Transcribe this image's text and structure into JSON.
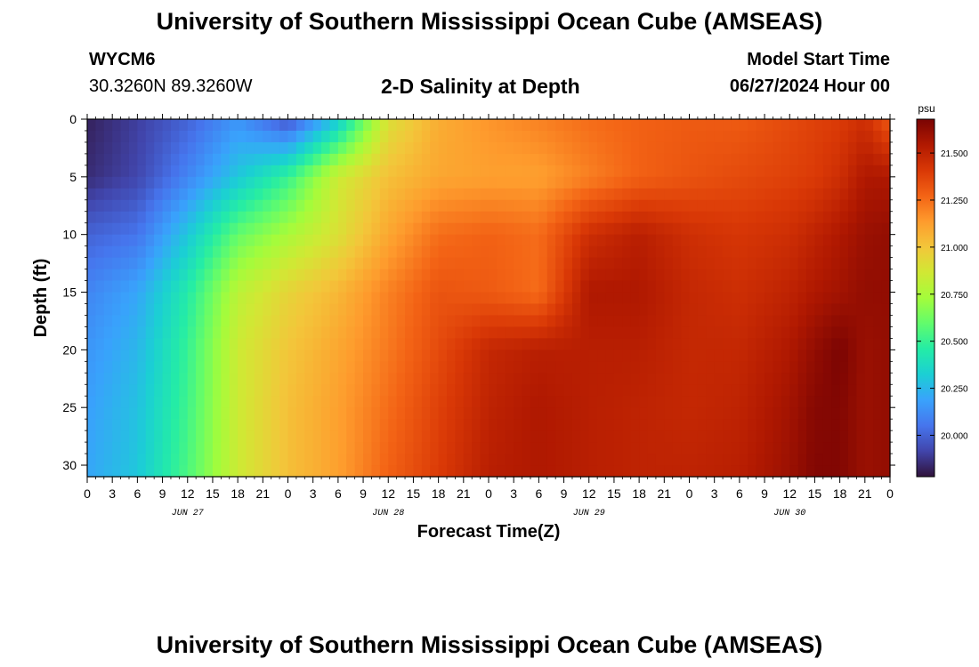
{
  "header": {
    "title": "University of Southern Mississippi Ocean Cube (AMSEAS)",
    "station": "WYCM6",
    "coords": "30.3260N  89.3260W",
    "subtitle": "2-D Salinity at Depth",
    "model_label": "Model Start Time",
    "model_time": "06/27/2024 Hour 00"
  },
  "footer": {
    "title": "University of Southern Mississippi Ocean Cube (AMSEAS)"
  },
  "chart_data": {
    "type": "heatmap",
    "title": "2-D Salinity at Depth",
    "xlabel": "Forecast Time(Z)",
    "ylabel": "Depth (ft)",
    "x_unit": "hours from 06/27/2024 00Z",
    "xlim": [
      0,
      96
    ],
    "ylim": [
      0,
      31
    ],
    "y_inverted": true,
    "x_ticks": [
      0,
      3,
      6,
      9,
      12,
      15,
      18,
      21,
      24,
      27,
      30,
      33,
      36,
      39,
      42,
      45,
      48,
      51,
      54,
      57,
      60,
      63,
      66,
      69,
      72,
      75,
      78,
      81,
      84,
      87,
      90,
      93,
      96
    ],
    "x_tick_labels": [
      "0",
      "3",
      "6",
      "9",
      "12",
      "15",
      "18",
      "21",
      "0",
      "3",
      "6",
      "9",
      "12",
      "15",
      "18",
      "21",
      "0",
      "3",
      "6",
      "9",
      "12",
      "15",
      "18",
      "21",
      "0",
      "3",
      "6",
      "9",
      "12",
      "15",
      "18",
      "21",
      "0"
    ],
    "day_labels": [
      {
        "hour": 12,
        "text": "JUN 27"
      },
      {
        "hour": 36,
        "text": "JUN 28"
      },
      {
        "hour": 60,
        "text": "JUN 29"
      },
      {
        "hour": 84,
        "text": "JUN 30"
      }
    ],
    "y_ticks": [
      0,
      5,
      10,
      15,
      20,
      25,
      30
    ],
    "y_tick_labels": [
      "0",
      "5",
      "10",
      "15",
      "20",
      "25",
      "30"
    ],
    "colorbar": {
      "unit": "psu",
      "min": 19.78,
      "max": 21.68,
      "ticks": [
        20.0,
        20.25,
        20.5,
        20.75,
        21.0,
        21.25,
        21.5
      ],
      "tick_labels": [
        "20.000",
        "20.250",
        "20.500",
        "20.750",
        "21.000",
        "21.250",
        "21.500"
      ],
      "colormap": [
        "#30123b",
        "#4145ab",
        "#4675ed",
        "#39a2fc",
        "#1bcfd4",
        "#24eca6",
        "#61fc6c",
        "#a4fc3b",
        "#d1e834",
        "#f3c63a",
        "#fe9b2d",
        "#f36315",
        "#d93806",
        "#b11901",
        "#7a0403"
      ]
    },
    "depths": [
      0,
      5,
      10,
      15,
      20,
      25,
      31
    ],
    "times": [
      0,
      6,
      12,
      18,
      24,
      30,
      36,
      42,
      48,
      54,
      60,
      66,
      72,
      78,
      84,
      87,
      90,
      93,
      96
    ],
    "values": [
      [
        19.82,
        19.9,
        20.0,
        20.15,
        19.95,
        20.3,
        20.9,
        21.08,
        21.15,
        21.2,
        21.25,
        21.28,
        21.3,
        21.3,
        21.35,
        21.38,
        21.4,
        21.45,
        21.3
      ],
      [
        19.85,
        19.92,
        20.1,
        20.3,
        20.5,
        20.85,
        21.02,
        21.1,
        21.12,
        21.12,
        21.2,
        21.28,
        21.32,
        21.35,
        21.38,
        21.4,
        21.45,
        21.55,
        21.55
      ],
      [
        20.0,
        20.05,
        20.3,
        20.6,
        20.75,
        20.9,
        21.1,
        21.25,
        21.28,
        21.25,
        21.45,
        21.52,
        21.45,
        21.42,
        21.45,
        21.5,
        21.55,
        21.6,
        21.62
      ],
      [
        20.1,
        20.2,
        20.45,
        20.8,
        20.95,
        21.05,
        21.2,
        21.32,
        21.3,
        21.25,
        21.55,
        21.55,
        21.48,
        21.45,
        21.5,
        21.55,
        21.58,
        21.62,
        21.62
      ],
      [
        20.15,
        20.25,
        20.5,
        20.85,
        21.0,
        21.1,
        21.22,
        21.35,
        21.48,
        21.52,
        21.52,
        21.52,
        21.48,
        21.48,
        21.55,
        21.62,
        21.68,
        21.6,
        21.62
      ],
      [
        20.18,
        20.28,
        20.52,
        20.85,
        21.02,
        21.12,
        21.25,
        21.38,
        21.5,
        21.55,
        21.52,
        21.5,
        21.48,
        21.5,
        21.58,
        21.65,
        21.66,
        21.6,
        21.62
      ],
      [
        20.2,
        20.3,
        20.55,
        20.85,
        21.02,
        21.12,
        21.28,
        21.4,
        21.52,
        21.55,
        21.52,
        21.5,
        21.5,
        21.52,
        21.6,
        21.66,
        21.66,
        21.6,
        21.62
      ]
    ]
  }
}
